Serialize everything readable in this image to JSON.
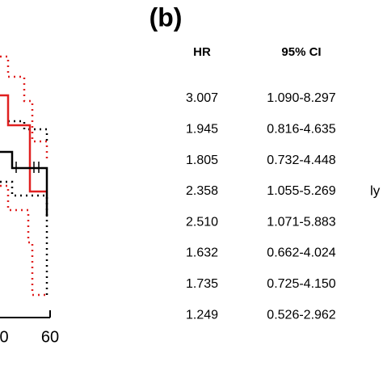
{
  "panel_label": "(b)",
  "plot": {
    "x_tick_labels": [
      "0",
      "60"
    ]
  },
  "table": {
    "header": [
      "HR",
      "95% CI"
    ],
    "rows": [
      [
        "3.007",
        "1.090-8.297"
      ],
      [
        "1.945",
        "0.816-4.635"
      ],
      [
        "1.805",
        "0.732-4.448"
      ],
      [
        "2.358",
        "1.055-5.269"
      ],
      [
        "2.510",
        "1.071-5.883"
      ],
      [
        "1.632",
        "0.662-4.024"
      ],
      [
        "1.735",
        "0.725-4.150"
      ],
      [
        "1.249",
        "0.526-2.962"
      ]
    ]
  },
  "side_text": "ly"
}
